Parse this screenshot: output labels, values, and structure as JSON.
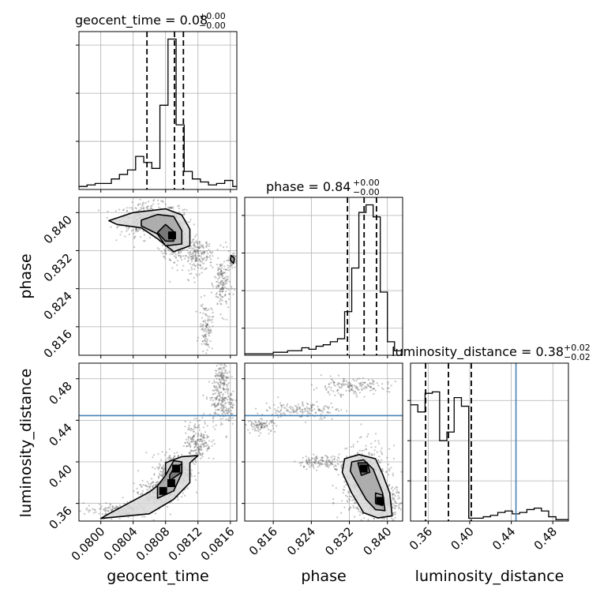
{
  "figure": {
    "type": "corner-plot"
  },
  "chart_data": [
    {
      "type": "histogram",
      "panel": "geocent_time-marginal",
      "parameter": "geocent_time",
      "title": {
        "prefix": "geocent_time = 0.08",
        "plus": "+0.00",
        "minus": "−0.00"
      },
      "xlim": [
        0.07973,
        0.08168
      ],
      "quantile_lines": [
        0.08057,
        0.08091,
        0.08102
      ],
      "bins": [
        0.07973,
        0.07983,
        0.07993,
        0.08003,
        0.08013,
        0.08023,
        0.08033,
        0.08043,
        0.08053,
        0.08063,
        0.08073,
        0.08083,
        0.08093,
        0.08103,
        0.08113,
        0.08123,
        0.08133,
        0.08143,
        0.08153,
        0.08163,
        0.08168
      ],
      "values": [
        0.02,
        0.03,
        0.04,
        0.04,
        0.07,
        0.1,
        0.13,
        0.22,
        0.18,
        0.14,
        0.56,
        1.0,
        0.43,
        0.12,
        0.07,
        0.05,
        0.03,
        0.04,
        0.06,
        0.02
      ],
      "ylim": [
        0,
        1.05
      ],
      "yticks": [
        0.32,
        0.64,
        0.96
      ],
      "grid": true
    },
    {
      "type": "histogram",
      "panel": "phase-marginal",
      "parameter": "phase",
      "title": {
        "prefix": "phase = 0.84",
        "plus": "+0.00",
        "minus": "−0.00"
      },
      "xlim": [
        0.81,
        0.8432
      ],
      "quantile_lines": [
        0.8316,
        0.8351,
        0.8377
      ],
      "bins": [
        0.81,
        0.8115,
        0.813,
        0.8145,
        0.816,
        0.8175,
        0.819,
        0.8205,
        0.822,
        0.8235,
        0.825,
        0.8265,
        0.828,
        0.8295,
        0.831,
        0.8325,
        0.834,
        0.8355,
        0.837,
        0.8385,
        0.84,
        0.8415,
        0.8432
      ],
      "values": [
        0.01,
        0.01,
        0.01,
        0.01,
        0.02,
        0.02,
        0.03,
        0.03,
        0.05,
        0.04,
        0.06,
        0.07,
        0.09,
        0.11,
        0.29,
        0.58,
        0.95,
        1.0,
        0.92,
        0.42,
        0.09,
        0.03
      ],
      "ylim": [
        0,
        1.05
      ],
      "yticks": [
        0.18,
        0.43,
        0.68,
        0.93
      ],
      "grid": true
    },
    {
      "type": "histogram",
      "panel": "luminosity_distance-marginal",
      "parameter": "luminosity_distance",
      "title": {
        "prefix": "luminosity_distance = 0.38",
        "plus": "+0.02",
        "minus": "−0.02"
      },
      "xlim": [
        0.343,
        0.495
      ],
      "quantile_lines": [
        0.3575,
        0.3795,
        0.4015
      ],
      "truth_line": 0.4445,
      "truth_color": "#4682b4",
      "bins": [
        0.343,
        0.35,
        0.357,
        0.364,
        0.371,
        0.378,
        0.385,
        0.392,
        0.399,
        0.406,
        0.413,
        0.42,
        0.427,
        0.434,
        0.441,
        0.448,
        0.455,
        0.462,
        0.469,
        0.476,
        0.483,
        0.49,
        0.495
      ],
      "values": [
        0.81,
        0.76,
        0.89,
        0.9,
        0.56,
        0.62,
        0.86,
        0.8,
        0.02,
        0.02,
        0.03,
        0.04,
        0.06,
        0.07,
        0.05,
        0.06,
        0.08,
        0.09,
        0.07,
        0.03,
        0.01,
        0.01
      ],
      "ylim": [
        0,
        1.1
      ],
      "yticks": [
        0.28,
        0.56,
        0.84
      ],
      "grid": true
    },
    {
      "type": "scatter",
      "panel": "phase-vs-geocent_time",
      "x_param": "geocent_time",
      "y_param": "phase",
      "xlim": [
        0.07973,
        0.08168
      ],
      "ylim": [
        0.81,
        0.8432
      ],
      "yticks": [
        0.816,
        0.824,
        0.832,
        0.84
      ],
      "ytick_labels": [
        "0.816",
        "0.824",
        "0.832",
        "0.840"
      ],
      "ylabel": "phase",
      "point_clusters": [
        {
          "x": 0.0806,
          "y": 0.8385,
          "sx": 0.00018,
          "sy": 0.0017,
          "n": 500
        },
        {
          "x": 0.0809,
          "y": 0.8355,
          "sx": 8e-05,
          "sy": 0.0025,
          "n": 500
        },
        {
          "x": 0.0812,
          "y": 0.831,
          "sx": 9e-05,
          "sy": 0.0018,
          "n": 200
        },
        {
          "x": 0.0815,
          "y": 0.825,
          "sx": 5e-05,
          "sy": 0.003,
          "n": 160
        },
        {
          "x": 0.0813,
          "y": 0.816,
          "sx": 4e-05,
          "sy": 0.0025,
          "n": 110
        },
        {
          "x": 0.08162,
          "y": 0.83,
          "sx": 2e-05,
          "sy": 0.0007,
          "n": 60
        }
      ],
      "contour_levels": [
        [
          [
            0.0801,
            0.8383
          ],
          [
            0.0804,
            0.84
          ],
          [
            0.0808,
            0.8408
          ],
          [
            0.081,
            0.8395
          ],
          [
            0.0811,
            0.8365
          ],
          [
            0.0811,
            0.833
          ],
          [
            0.0809,
            0.8318
          ],
          [
            0.0807,
            0.8345
          ],
          [
            0.0805,
            0.8368
          ],
          [
            0.0802,
            0.8375
          ]
        ],
        [
          [
            0.0805,
            0.8384
          ],
          [
            0.0807,
            0.8396
          ],
          [
            0.0809,
            0.8392
          ],
          [
            0.081,
            0.8362
          ],
          [
            0.081,
            0.8334
          ],
          [
            0.0808,
            0.833
          ],
          [
            0.0807,
            0.8355
          ],
          [
            0.0805,
            0.8372
          ]
        ],
        [
          [
            0.0808,
            0.8375
          ],
          [
            0.0809,
            0.836
          ],
          [
            0.0809,
            0.834
          ],
          [
            0.0808,
            0.834
          ],
          [
            0.0807,
            0.8358
          ]
        ],
        [
          [
            0.08161,
            0.831
          ],
          [
            0.08165,
            0.8304
          ],
          [
            0.08164,
            0.8293
          ],
          [
            0.0816,
            0.83
          ]
        ]
      ],
      "peak": {
        "x": 0.08088,
        "y": 0.8352
      },
      "grid": true
    },
    {
      "type": "scatter",
      "panel": "luminosity_distance-vs-geocent_time",
      "x_param": "geocent_time",
      "y_param": "luminosity_distance",
      "xlim": [
        0.07973,
        0.08168
      ],
      "ylim": [
        0.343,
        0.495
      ],
      "xticks": [
        0.08,
        0.0804,
        0.0808,
        0.0812,
        0.0816
      ],
      "xtick_labels": [
        "0.0800",
        "0.0804",
        "0.0808",
        "0.0812",
        "0.0816"
      ],
      "yticks": [
        0.36,
        0.4,
        0.44,
        0.48
      ],
      "ytick_labels": [
        "0.36",
        "0.40",
        "0.44",
        "0.48"
      ],
      "xlabel": "geocent_time",
      "ylabel": "luminosity_distance",
      "truth_y": 0.4445,
      "truth_color": "#4682b4",
      "point_clusters": [
        {
          "x": 0.0809,
          "y": 0.39,
          "sx": 0.0001,
          "sy": 0.009,
          "n": 400
        },
        {
          "x": 0.0807,
          "y": 0.37,
          "sx": 0.00012,
          "sy": 0.006,
          "n": 250
        },
        {
          "x": 0.0802,
          "y": 0.353,
          "sx": 0.0002,
          "sy": 0.0035,
          "n": 160
        },
        {
          "x": 0.0812,
          "y": 0.42,
          "sx": 8e-05,
          "sy": 0.01,
          "n": 200
        },
        {
          "x": 0.0815,
          "y": 0.455,
          "sx": 8e-05,
          "sy": 0.01,
          "n": 200
        },
        {
          "x": 0.0815,
          "y": 0.48,
          "sx": 5e-05,
          "sy": 0.008,
          "n": 120
        }
      ],
      "contour_levels": [
        [
          [
            0.08,
            0.3455
          ],
          [
            0.0806,
            0.35
          ],
          [
            0.0809,
            0.364
          ],
          [
            0.0811,
            0.38
          ],
          [
            0.0811,
            0.399
          ],
          [
            0.0812,
            0.406
          ],
          [
            0.081,
            0.405
          ],
          [
            0.0808,
            0.399
          ],
          [
            0.0808,
            0.383
          ],
          [
            0.0806,
            0.371
          ],
          [
            0.0801,
            0.35
          ]
        ],
        [
          [
            0.0807,
            0.365
          ],
          [
            0.0809,
            0.372
          ],
          [
            0.081,
            0.389
          ],
          [
            0.081,
            0.4
          ],
          [
            0.0809,
            0.401
          ],
          [
            0.0808,
            0.387
          ],
          [
            0.0807,
            0.377
          ]
        ],
        [
          [
            0.08085,
            0.382
          ],
          [
            0.081,
            0.39
          ],
          [
            0.081,
            0.398
          ],
          [
            0.0809,
            0.394
          ],
          [
            0.08085,
            0.387
          ]
        ]
      ],
      "peaks": [
        {
          "x": 0.08093,
          "y": 0.3935
        },
        {
          "x": 0.08077,
          "y": 0.372
        },
        {
          "x": 0.08087,
          "y": 0.3795
        }
      ],
      "grid": true
    },
    {
      "type": "scatter",
      "panel": "luminosity_distance-vs-phase",
      "x_param": "phase",
      "y_param": "luminosity_distance",
      "xlim": [
        0.81,
        0.8432
      ],
      "ylim": [
        0.343,
        0.495
      ],
      "xticks": [
        0.816,
        0.824,
        0.832,
        0.84
      ],
      "xtick_labels": [
        "0.816",
        "0.824",
        "0.832",
        "0.840"
      ],
      "xlabel": "phase",
      "truth_y": 0.4445,
      "truth_color": "#4682b4",
      "point_clusters": [
        {
          "x": 0.8355,
          "y": 0.38,
          "sx": 0.0025,
          "sy": 0.017,
          "n": 600
        },
        {
          "x": 0.839,
          "y": 0.36,
          "sx": 0.002,
          "sy": 0.008,
          "n": 250
        },
        {
          "x": 0.827,
          "y": 0.4,
          "sx": 0.003,
          "sy": 0.003,
          "n": 150
        },
        {
          "x": 0.822,
          "y": 0.45,
          "sx": 0.004,
          "sy": 0.004,
          "n": 160
        },
        {
          "x": 0.832,
          "y": 0.472,
          "sx": 0.004,
          "sy": 0.004,
          "n": 160
        },
        {
          "x": 0.8135,
          "y": 0.435,
          "sx": 0.0015,
          "sy": 0.003,
          "n": 90
        }
      ],
      "contour_levels": [
        [
          [
            0.831,
            0.403
          ],
          [
            0.834,
            0.407
          ],
          [
            0.8375,
            0.403
          ],
          [
            0.839,
            0.388
          ],
          [
            0.8405,
            0.37
          ],
          [
            0.841,
            0.348
          ],
          [
            0.838,
            0.346
          ],
          [
            0.835,
            0.351
          ],
          [
            0.8325,
            0.37
          ],
          [
            0.8305,
            0.39
          ]
        ],
        [
          [
            0.8325,
            0.4
          ],
          [
            0.835,
            0.402
          ],
          [
            0.837,
            0.393
          ],
          [
            0.839,
            0.37
          ],
          [
            0.8395,
            0.353
          ],
          [
            0.8375,
            0.354
          ],
          [
            0.8355,
            0.364
          ],
          [
            0.8335,
            0.38
          ],
          [
            0.8322,
            0.391
          ]
        ],
        [
          [
            0.8338,
            0.399
          ],
          [
            0.8358,
            0.399
          ],
          [
            0.8363,
            0.39
          ],
          [
            0.8345,
            0.387
          ]
        ],
        [
          [
            0.8375,
            0.37
          ],
          [
            0.839,
            0.368
          ],
          [
            0.839,
            0.358
          ],
          [
            0.8375,
            0.36
          ]
        ]
      ],
      "peaks": [
        {
          "x": 0.835,
          "y": 0.3935
        },
        {
          "x": 0.8385,
          "y": 0.3625
        }
      ],
      "grid": true
    }
  ]
}
